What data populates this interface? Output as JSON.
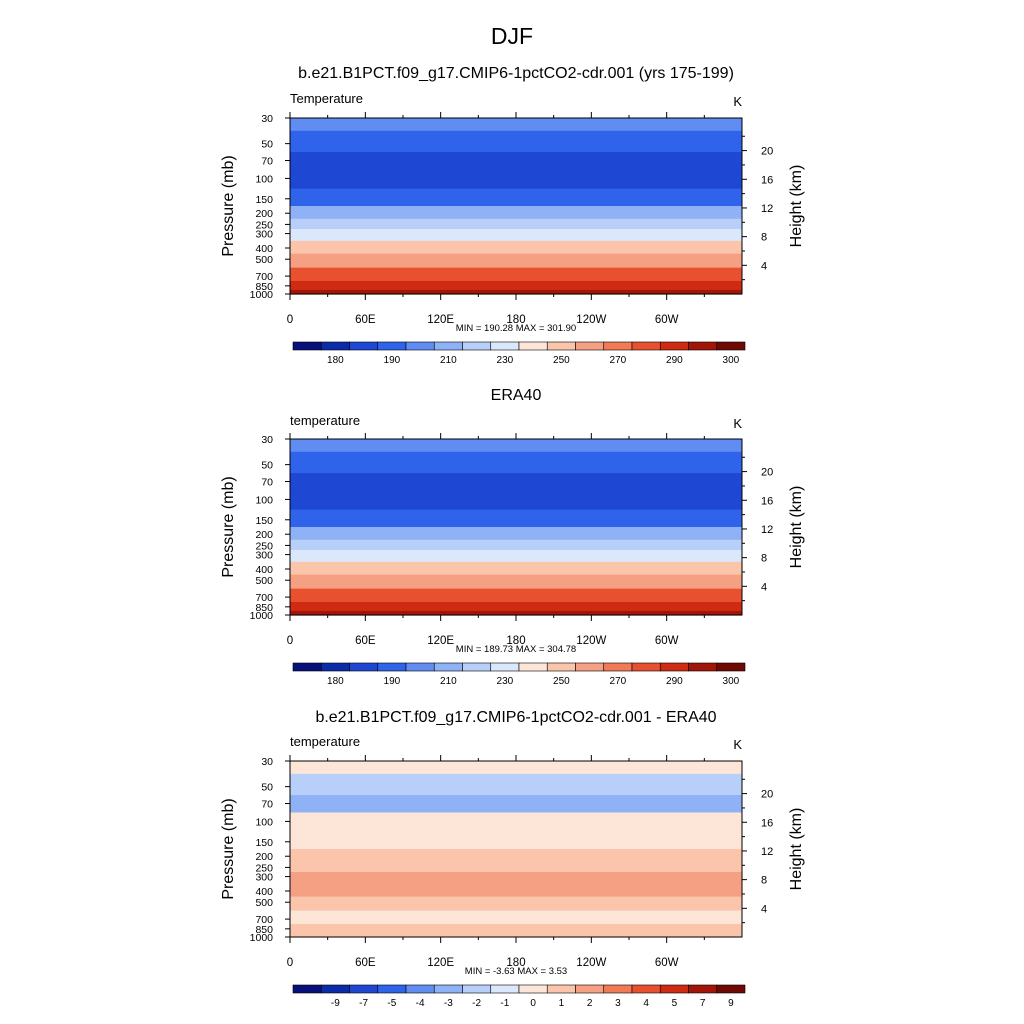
{
  "figure": {
    "title": "DJF"
  },
  "chart_data": [
    {
      "type": "heatmap",
      "title": "b.e21.B1PCT.f09_g17.CMIP6-1pctCO2-cdr.001 (yrs 175-199)",
      "left_label": "Temperature",
      "unit_label": "K",
      "ylabel": "Pressure (mb)",
      "y2label": "Height (km)",
      "x_ticks": [
        "0",
        "60E",
        "120E",
        "180",
        "120W",
        "60W"
      ],
      "y_ticks": [
        "30",
        "50",
        "70",
        "100",
        "150",
        "200",
        "250",
        "300",
        "400",
        "500",
        "700",
        "850",
        "1000"
      ],
      "y2_ticks": [
        "4",
        "8",
        "12",
        "16",
        "20"
      ],
      "stats": "MIN = 190.28  MAX = 301.90",
      "colorbar_labels": [
        "180",
        "190",
        "210",
        "230",
        "250",
        "270",
        "290",
        "300"
      ],
      "levels_profile": [
        {
          "p": "30",
          "level": 4
        },
        {
          "p": "50",
          "level": 3
        },
        {
          "p": "70",
          "level": 2
        },
        {
          "p": "100",
          "level": 2
        },
        {
          "p": "150",
          "level": 3
        },
        {
          "p": "200",
          "level": 5
        },
        {
          "p": "250",
          "level": 6
        },
        {
          "p": "300",
          "level": 7
        },
        {
          "p": "400",
          "level": 9
        },
        {
          "p": "500",
          "level": 10
        },
        {
          "p": "700",
          "level": 12
        },
        {
          "p": "850",
          "level": 13
        },
        {
          "p": "1000",
          "level": 14
        }
      ]
    },
    {
      "type": "heatmap",
      "title": "ERA40",
      "left_label": "temperature",
      "unit_label": "K",
      "ylabel": "Pressure (mb)",
      "y2label": "Height (km)",
      "x_ticks": [
        "0",
        "60E",
        "120E",
        "180",
        "120W",
        "60W"
      ],
      "y_ticks": [
        "30",
        "50",
        "70",
        "100",
        "150",
        "200",
        "250",
        "300",
        "400",
        "500",
        "700",
        "850",
        "1000"
      ],
      "y2_ticks": [
        "4",
        "8",
        "12",
        "16",
        "20"
      ],
      "stats": "MIN = 189.73  MAX = 304.78",
      "colorbar_labels": [
        "180",
        "190",
        "210",
        "230",
        "250",
        "270",
        "290",
        "300"
      ],
      "levels_profile": [
        {
          "p": "30",
          "level": 4
        },
        {
          "p": "50",
          "level": 3
        },
        {
          "p": "70",
          "level": 2
        },
        {
          "p": "100",
          "level": 2
        },
        {
          "p": "150",
          "level": 3
        },
        {
          "p": "200",
          "level": 5
        },
        {
          "p": "250",
          "level": 6
        },
        {
          "p": "300",
          "level": 7
        },
        {
          "p": "400",
          "level": 9
        },
        {
          "p": "500",
          "level": 10
        },
        {
          "p": "700",
          "level": 12
        },
        {
          "p": "850",
          "level": 13
        },
        {
          "p": "1000",
          "level": 14
        }
      ]
    },
    {
      "type": "heatmap",
      "title": "b.e21.B1PCT.f09_g17.CMIP6-1pctCO2-cdr.001 - ERA40",
      "left_label": "temperature",
      "unit_label": "K",
      "ylabel": "Pressure (mb)",
      "y2label": "Height (km)",
      "x_ticks": [
        "0",
        "60E",
        "120E",
        "180",
        "120W",
        "60W"
      ],
      "y_ticks": [
        "30",
        "50",
        "70",
        "100",
        "150",
        "200",
        "250",
        "300",
        "400",
        "500",
        "700",
        "850",
        "1000"
      ],
      "y2_ticks": [
        "4",
        "8",
        "12",
        "16",
        "20"
      ],
      "stats": "MIN =  -3.63  MAX =   3.53",
      "colorbar_labels": [
        "-9",
        "-7",
        "-5",
        "-4",
        "-3",
        "-2",
        "-1",
        "0",
        "1",
        "2",
        "3",
        "4",
        "5",
        "7",
        "9"
      ],
      "levels_profile": [
        {
          "p": "30",
          "level": 8
        },
        {
          "p": "50",
          "level": 6
        },
        {
          "p": "70",
          "level": 5
        },
        {
          "p": "100",
          "level": 8
        },
        {
          "p": "150",
          "level": 8
        },
        {
          "p": "200",
          "level": 9
        },
        {
          "p": "250",
          "level": 9
        },
        {
          "p": "300",
          "level": 10
        },
        {
          "p": "400",
          "level": 10
        },
        {
          "p": "500",
          "level": 9
        },
        {
          "p": "700",
          "level": 8
        },
        {
          "p": "850",
          "level": 9
        },
        {
          "p": "1000",
          "level": 9
        }
      ]
    }
  ],
  "colors": {
    "palette": [
      "#08107a",
      "#0b2ca8",
      "#1e48d4",
      "#2f63ea",
      "#5f8df2",
      "#8fb2f6",
      "#b8cff9",
      "#dbe7fb",
      "#fde6d8",
      "#fbc5ac",
      "#f6a083",
      "#f27a57",
      "#e85130",
      "#cf2b13",
      "#a11608",
      "#6e0a03"
    ]
  }
}
